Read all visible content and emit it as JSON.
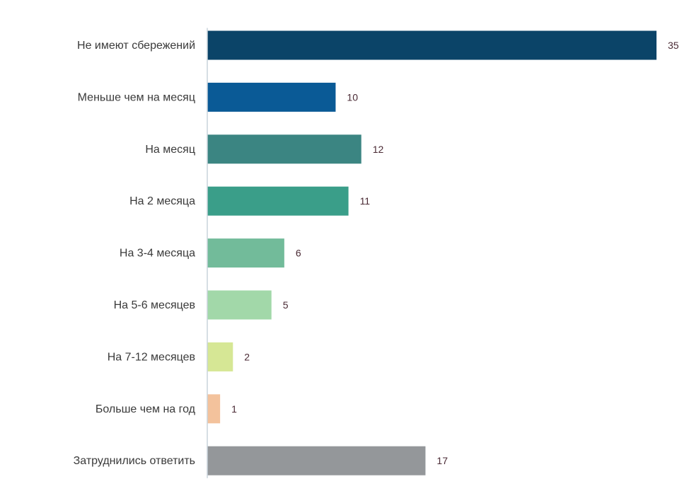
{
  "chart_data": {
    "type": "bar",
    "orientation": "horizontal",
    "title": "",
    "xlabel": "",
    "ylabel": "",
    "xlim": [
      0,
      35
    ],
    "grid": false,
    "legend": "none",
    "categories": [
      "Не имеют сбережений",
      "Меньше чем на месяц",
      "На месяц",
      "На 2 месяца",
      "На 3-4 месяца",
      "На 5-6 месяцев",
      "На 7-12 месяцев",
      "Больше чем на год",
      "Затруднились ответить"
    ],
    "values": [
      35,
      10,
      12,
      11,
      6,
      5,
      2,
      1,
      17
    ],
    "value_labels": [
      "35",
      "10",
      "12",
      "11",
      "6",
      "5",
      "2",
      "1",
      "17"
    ],
    "colors": [
      "#0b4468",
      "#0a5a96",
      "#3b8582",
      "#3a9e89",
      "#72bb9a",
      "#a2d8a9",
      "#d6e795",
      "#f3c29c",
      "#94979a"
    ],
    "axis_color": "#c9d3db"
  }
}
